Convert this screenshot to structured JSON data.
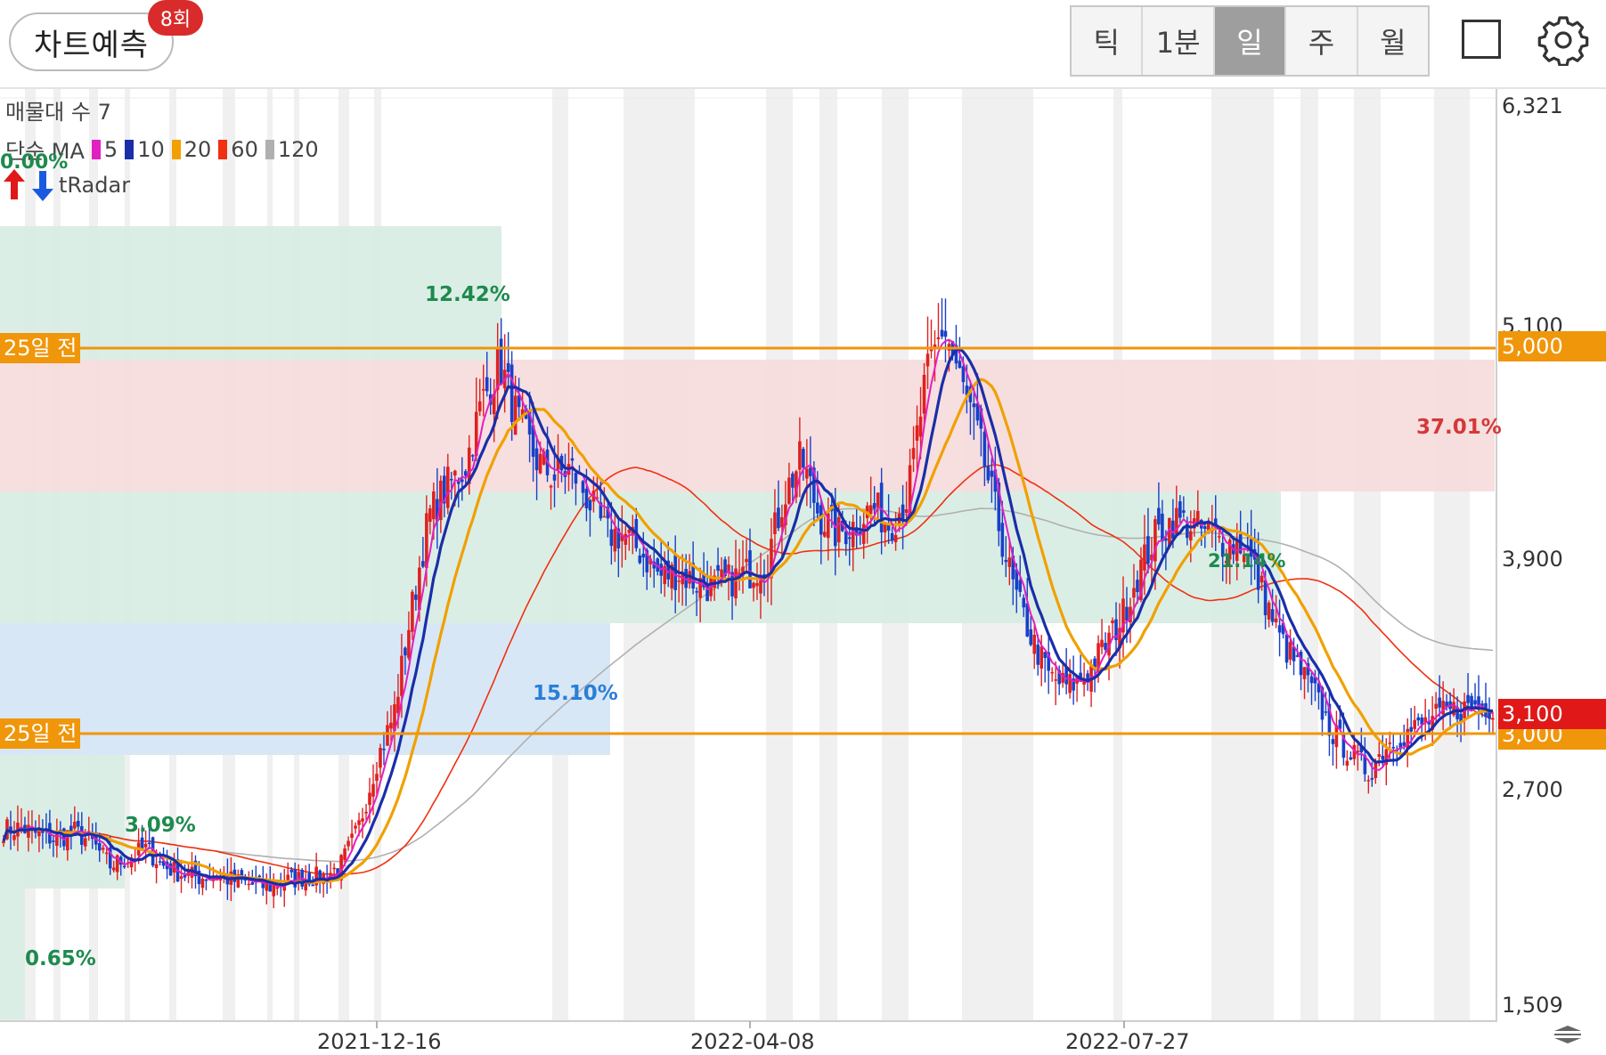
{
  "header": {
    "predict_label": "차트예측",
    "predict_badge": "8회",
    "periods": [
      "틱",
      "1분",
      "일",
      "주",
      "월"
    ],
    "active_period": "일"
  },
  "legend": {
    "volume_profile": "매물대 수 7",
    "ma_prefix": "단순 MA",
    "ma_items": [
      {
        "label": "5",
        "color": "#e020c0"
      },
      {
        "label": "10",
        "color": "#1a2ea8"
      },
      {
        "label": "20",
        "color": "#f0a000"
      },
      {
        "label": "60",
        "color": "#f03010"
      },
      {
        "label": "120",
        "color": "#b0b0b0"
      }
    ],
    "top_pct": "0.00%",
    "radar": "tRadar"
  },
  "price_axis": {
    "ticks": [
      "6,321",
      "5,100",
      "3,900",
      "2,700",
      "1,509"
    ],
    "labels": [
      {
        "text": "5,000",
        "color": "#f0960a"
      },
      {
        "text": "3,100",
        "color": "#e01818"
      },
      {
        "text": "3,000",
        "color": "#f0960a"
      }
    ]
  },
  "date_axis": [
    "2021-12-16",
    "2022-04-08",
    "2022-07-27"
  ],
  "reference_lines": [
    {
      "label": "25일 전",
      "price": 5000
    },
    {
      "label": "25일 전",
      "price": 3000
    }
  ],
  "zone_labels": [
    {
      "text": "12.42%",
      "color": "#1e8a4e"
    },
    {
      "text": "37.01%",
      "color": "#d43838"
    },
    {
      "text": "15.10%",
      "color": "#2a7fd6"
    },
    {
      "text": "3.09%",
      "color": "#1e8a4e"
    },
    {
      "text": "0.65%",
      "color": "#1e8a4e"
    },
    {
      "text": "21.14%",
      "color": "#1e8a4e"
    }
  ],
  "colors": {
    "up": "#e02020",
    "down": "#1840c8",
    "ma5": "#e020c0",
    "ma10": "#1a2ea8",
    "ma20": "#f0a000",
    "ma60": "#f03010",
    "ma120": "#b0b0b0",
    "ref_line": "#f0960a"
  },
  "chart_data": {
    "type": "candlestick",
    "y_range": [
      1509,
      6321
    ],
    "x_labels": [
      "2021-12-16",
      "2022-04-08",
      "2022-07-27"
    ],
    "close_anchors": [
      2450,
      2460,
      2420,
      2400,
      2440,
      2380,
      2260,
      2300,
      2350,
      2260,
      2220,
      2200,
      2210,
      2180,
      2160,
      2150,
      2180,
      2200,
      2200,
      2260,
      2450,
      2800,
      3050,
      3600,
      4100,
      4250,
      4350,
      4700,
      4900,
      4600,
      4400,
      4300,
      4350,
      4180,
      4000,
      4000,
      3900,
      3780,
      3800,
      3750,
      3720,
      3760,
      3800,
      3850,
      4200,
      4400,
      4100,
      4000,
      4050,
      4150,
      4050,
      4200,
      4800,
      5100,
      4800,
      4500,
      4100,
      3700,
      3450,
      3250,
      3200,
      3250,
      3400,
      3550,
      3800,
      4000,
      4080,
      4050,
      4000,
      3950,
      3950,
      3700,
      3450,
      3300,
      3150,
      2950,
      2850,
      2750,
      2900,
      2950,
      3000,
      3050,
      3080,
      3100,
      3100
    ],
    "volume_profile_pct": [
      "12.42%",
      "37.01%",
      "15.10%",
      "3.09%",
      "0.65%",
      "21.14%"
    ],
    "reference_levels": [
      5000,
      3000
    ],
    "current_price": 3100
  }
}
